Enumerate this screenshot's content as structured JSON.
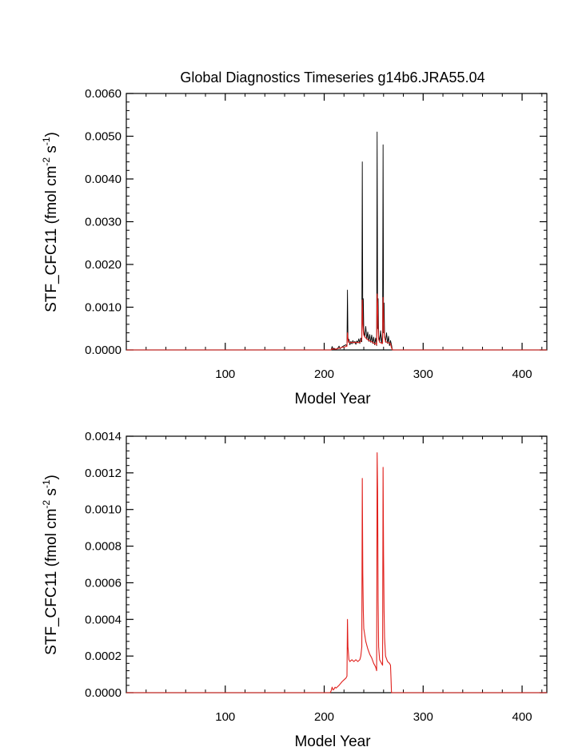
{
  "colors": {
    "raw": "#000000",
    "smooth": "#e0201c",
    "axis": "#000000",
    "background": "#ffffff"
  },
  "chart_data": [
    {
      "type": "line",
      "title": "Global Diagnostics Timeseries g14b6.JRA55.04",
      "xlabel": "Model Year",
      "ylabel": "STF_CFC11 (fmol cm",
      "ylabel_exp1": "-2",
      "ylabel_mid": " s",
      "ylabel_exp2": "-1",
      "ylabel_end": ")",
      "xlim": [
        0,
        425
      ],
      "ylim": [
        0,
        0.006
      ],
      "xticks": [
        100,
        200,
        300,
        400
      ],
      "xtick_labels": [
        "100",
        "200",
        "300",
        "400"
      ],
      "yticks": [
        0,
        0.001,
        0.002,
        0.003,
        0.004,
        0.005,
        0.006
      ],
      "ytick_labels": [
        "0.0000",
        "0.0010",
        "0.0020",
        "0.0030",
        "0.0040",
        "0.0050",
        "0.0060"
      ],
      "grid": false,
      "series": [
        {
          "style": "raw",
          "x": [
            0,
            207,
            208,
            209,
            210,
            212,
            214,
            215,
            216,
            218,
            220,
            222,
            223,
            223.5,
            224,
            224.5,
            225,
            226,
            227,
            228,
            229,
            230,
            231,
            232,
            233,
            234,
            235,
            236,
            237,
            238,
            238.5,
            239,
            239.5,
            240,
            241,
            242,
            243,
            244,
            245,
            246,
            247,
            248,
            249,
            250,
            251,
            252,
            253,
            253.5,
            254,
            254.5,
            255,
            256,
            257,
            258,
            259,
            259.5,
            260,
            260.5,
            261,
            262,
            263,
            264,
            265,
            266,
            267,
            268,
            268.5,
            269,
            425
          ],
          "y": [
            0,
            0,
            8e-05,
            2e-05,
            4e-05,
            1e-05,
            5e-05,
            9e-05,
            3e-05,
            7e-05,
            0.0001,
            0.00012,
            9e-05,
            0.0014,
            0.0003,
            0.00018,
            0.00025,
            0.00012,
            0.0002,
            0.00014,
            0.00022,
            0.00016,
            0.0002,
            0.00013,
            0.00021,
            0.00017,
            0.00026,
            0.00015,
            0.00028,
            0.00019,
            0.0044,
            0.0006,
            0.0012,
            0.00045,
            0.0003,
            0.00055,
            0.00025,
            0.00042,
            0.0002,
            0.00036,
            0.00018,
            0.00035,
            0.00015,
            0.0003,
            0.00012,
            0.00028,
            0.0001,
            0.0051,
            0.0005,
            0.0012,
            0.00035,
            0.0002,
            0.00045,
            0.00015,
            0.0004,
            0.0048,
            0.0004,
            0.0011,
            0.00035,
            0.00018,
            0.0004,
            0.00015,
            0.00032,
            0.0001,
            0.00022,
            0.00012,
            5e-05,
            0,
            0
          ]
        },
        {
          "style": "smooth",
          "x": [
            0,
            207,
            208,
            209,
            210,
            212,
            215,
            218,
            220,
            222,
            223,
            223.5,
            224,
            225,
            226,
            228,
            230,
            232,
            234,
            236,
            237,
            238,
            238.5,
            239,
            239.5,
            240,
            242,
            244,
            246,
            248,
            250,
            252,
            253,
            253.5,
            254,
            254.5,
            255,
            256,
            258,
            259,
            259.5,
            260,
            260.5,
            261,
            262,
            264,
            266,
            267,
            268,
            269,
            425
          ],
          "y": [
            0,
            0,
            3e-05,
            1.5e-05,
            2e-05,
            2e-05,
            4e-05,
            6e-05,
            7e-05,
            8e-05,
            9e-05,
            0.0004,
            0.00025,
            0.00018,
            0.00017,
            0.00018,
            0.00017,
            0.00018,
            0.00017,
            0.00018,
            0.0002,
            0.00025,
            0.00117,
            0.00065,
            0.00045,
            0.00035,
            0.00028,
            0.00024,
            0.00021,
            0.00019,
            0.00016,
            0.00014,
            0.00012,
            0.00131,
            0.0011,
            0.0005,
            0.00025,
            0.00018,
            0.00016,
            0.00015,
            0.00123,
            0.00075,
            0.00045,
            0.0003,
            0.0002,
            0.00017,
            0.00016,
            0.00015,
            5e-05,
            0,
            0
          ]
        }
      ]
    },
    {
      "type": "line",
      "title": "",
      "xlabel": "Model Year",
      "ylabel": "STF_CFC11 (fmol cm",
      "ylabel_exp1": "-2",
      "ylabel_mid": " s",
      "ylabel_exp2": "-1",
      "ylabel_end": ")",
      "xlim": [
        0,
        425
      ],
      "ylim": [
        0,
        0.0014
      ],
      "xticks": [
        100,
        200,
        300,
        400
      ],
      "xtick_labels": [
        "100",
        "200",
        "300",
        "400"
      ],
      "yticks": [
        0,
        0.0002,
        0.0004,
        0.0006,
        0.0008,
        0.001,
        0.0012,
        0.0014
      ],
      "ytick_labels": [
        "0.0000",
        "0.0002",
        "0.0004",
        "0.0006",
        "0.0008",
        "0.0010",
        "0.0012",
        "0.0014"
      ],
      "grid": false,
      "series": [
        {
          "style": "smooth",
          "x": [
            0,
            206,
            207,
            208,
            209,
            210,
            211,
            212,
            213,
            215,
            218,
            220,
            222,
            223,
            223.5,
            224,
            225,
            226,
            228,
            230,
            232,
            234,
            236,
            237,
            238,
            238.5,
            239,
            239.5,
            240,
            242,
            244,
            246,
            248,
            250,
            252,
            253,
            253.5,
            254,
            254.5,
            255,
            256,
            258,
            259,
            259.5,
            260,
            260.5,
            261,
            262,
            264,
            266,
            267,
            267.5,
            268,
            425
          ],
          "y": [
            0,
            0,
            1e-05,
            3e-05,
            1.5e-05,
            2e-05,
            3e-05,
            2.5e-05,
            3e-05,
            4e-05,
            6e-05,
            7e-05,
            8e-05,
            9e-05,
            0.0004,
            0.00025,
            0.00018,
            0.00017,
            0.00018,
            0.00017,
            0.00018,
            0.00017,
            0.00018,
            0.0002,
            0.00025,
            0.00117,
            0.00065,
            0.00045,
            0.00035,
            0.00028,
            0.00024,
            0.00021,
            0.00019,
            0.00016,
            0.00014,
            0.00012,
            0.00131,
            0.0011,
            0.0005,
            0.00025,
            0.00018,
            0.00016,
            0.00015,
            0.00123,
            0.00075,
            0.00045,
            0.0003,
            0.0002,
            0.00017,
            0.00016,
            0.00015,
            8e-05,
            0,
            0
          ]
        }
      ]
    }
  ]
}
